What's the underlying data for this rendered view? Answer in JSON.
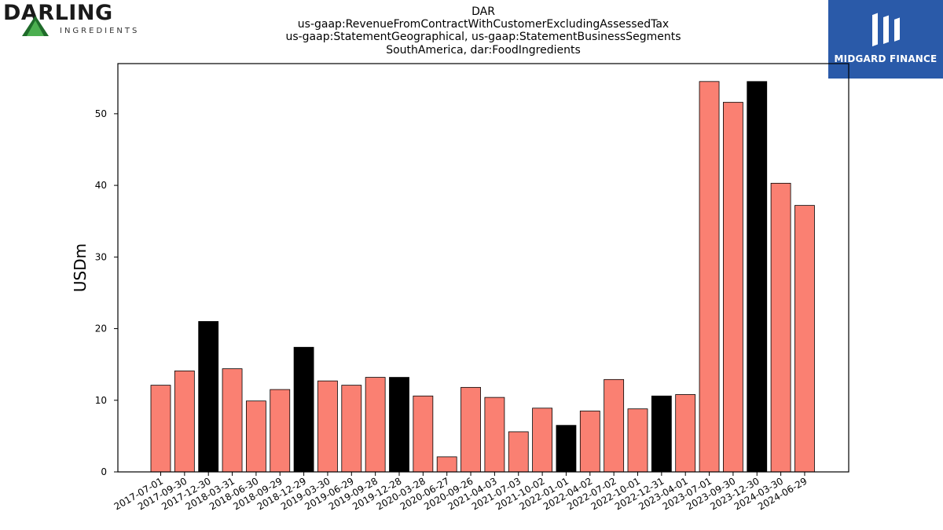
{
  "header": {
    "title_lines": [
      "DAR",
      "us-gaap:RevenueFromContractWithCustomerExcludingAssessedTax",
      "us-gaap:StatementGeographical, us-gaap:StatementBusinessSegments",
      "SouthAmerica, dar:FoodIngredients"
    ]
  },
  "logos": {
    "left_word": "DARLING",
    "left_sub": "INGREDIENTS",
    "right_word": "MIDGARD FINANCE"
  },
  "colors": {
    "bar_default": "#fa8072",
    "bar_highlight": "#000000",
    "logo_right_bg": "#2a5aa9",
    "logo_left_triangle": "#2e7d32"
  },
  "chart_data": {
    "type": "bar",
    "ylabel": "USDm",
    "xlabel": "",
    "ylim": [
      0,
      57
    ],
    "yticks": [
      0,
      10,
      20,
      30,
      40,
      50
    ],
    "categories": [
      "2017-07-01",
      "2017-09-30",
      "2017-12-30",
      "2018-03-31",
      "2018-06-30",
      "2018-09-29",
      "2018-12-29",
      "2019-03-30",
      "2019-06-29",
      "2019-09-28",
      "2019-12-28",
      "2020-03-28",
      "2020-06-27",
      "2020-09-26",
      "2021-04-03",
      "2021-07-03",
      "2021-10-02",
      "2022-01-01",
      "2022-04-02",
      "2022-07-02",
      "2022-10-01",
      "2022-12-31",
      "2023-04-01",
      "2023-07-01",
      "2023-09-30",
      "2023-12-30",
      "2024-03-30",
      "2024-06-29"
    ],
    "values": [
      12.1,
      14.1,
      21.0,
      14.4,
      9.9,
      11.5,
      17.4,
      12.7,
      12.1,
      13.2,
      13.2,
      10.6,
      2.1,
      11.8,
      10.4,
      5.6,
      8.9,
      6.5,
      8.5,
      12.9,
      8.8,
      10.6,
      10.8,
      54.5,
      51.6,
      54.5,
      40.3,
      37.2
    ],
    "highlighted": [
      false,
      false,
      true,
      false,
      false,
      false,
      true,
      false,
      false,
      false,
      true,
      false,
      false,
      false,
      false,
      false,
      false,
      true,
      false,
      false,
      false,
      true,
      false,
      false,
      false,
      true,
      false,
      false
    ],
    "grid": false,
    "legend": "none"
  }
}
